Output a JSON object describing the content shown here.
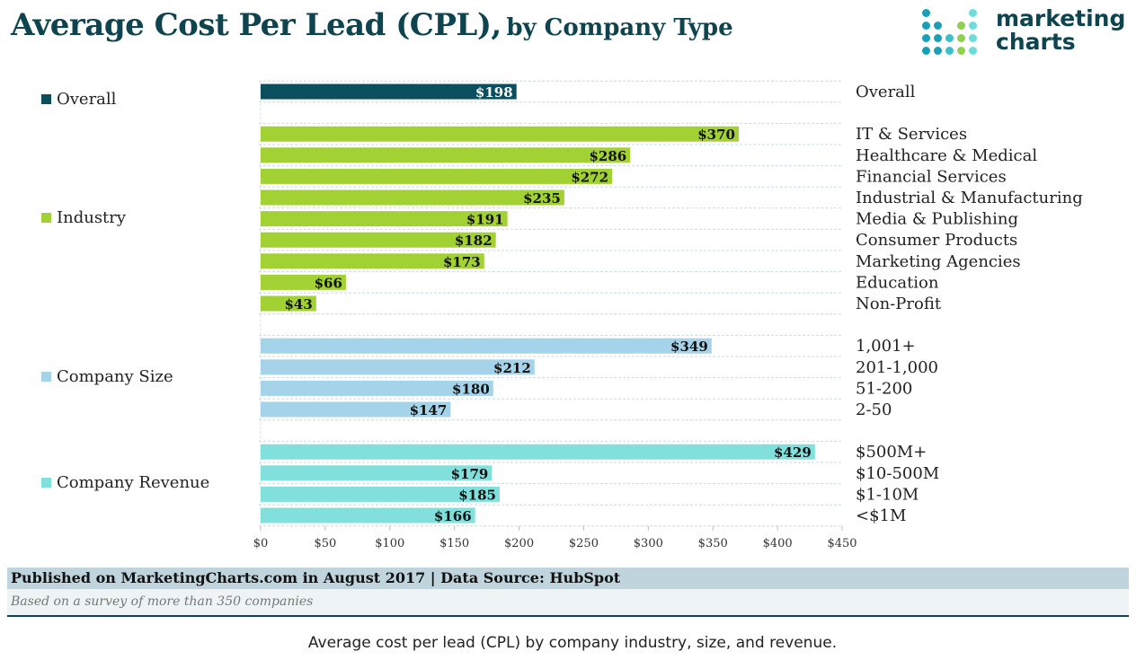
{
  "title": {
    "main": "Average Cost Per Lead (CPL),",
    "sub": "by Company Type"
  },
  "logo": {
    "line1": "marketing",
    "line2": "charts"
  },
  "chart_data": {
    "type": "bar",
    "orientation": "horizontal",
    "title": "Average Cost Per Lead (CPL), by Company Type",
    "xlim": [
      0,
      450
    ],
    "xticks": [
      "$0",
      "$50",
      "$100",
      "$150",
      "$200",
      "$250",
      "$300",
      "$350",
      "$400",
      "$450"
    ],
    "xtick_values": [
      0,
      50,
      100,
      150,
      200,
      250,
      300,
      350,
      400,
      450
    ],
    "grid": true,
    "groups": [
      {
        "name": "Overall",
        "color": "#0b4f5e",
        "label_color": "#ffffff",
        "categories": [
          "Overall"
        ],
        "values": [
          198
        ],
        "labels": [
          "$198"
        ]
      },
      {
        "name": "Industry",
        "color": "#a2d133",
        "label_color": "#111111",
        "categories": [
          "IT & Services",
          "Healthcare & Medical",
          "Financial Services",
          "Industrial & Manufacturing",
          "Media & Publishing",
          "Consumer Products",
          "Marketing Agencies",
          "Education",
          "Non-Profit"
        ],
        "values": [
          370,
          286,
          272,
          235,
          191,
          182,
          173,
          66,
          43
        ],
        "labels": [
          "$370",
          "$286",
          "$272",
          "$235",
          "$191",
          "$182",
          "$173",
          "$66",
          "$43"
        ]
      },
      {
        "name": "Company Size",
        "color": "#a5d3ea",
        "label_color": "#111111",
        "categories": [
          "1,001+",
          "201-1,000",
          "51-200",
          "2-50"
        ],
        "values": [
          349,
          212,
          180,
          147
        ],
        "labels": [
          "$349",
          "$212",
          "$180",
          "$147"
        ]
      },
      {
        "name": "Company Revenue",
        "color": "#82e0dc",
        "label_color": "#111111",
        "categories": [
          "$500M+",
          "$10-500M",
          "$1-10M",
          "<$1M"
        ],
        "values": [
          429,
          179,
          185,
          166
        ],
        "labels": [
          "$429",
          "$179",
          "$185",
          "$166"
        ]
      }
    ]
  },
  "footer": {
    "published": "Published on MarketingCharts.com in August 2017 | Data Source: HubSpot",
    "note": "Based on a survey of more than 350 companies"
  },
  "caption": "Average cost per lead (CPL) by company industry, size, and revenue."
}
